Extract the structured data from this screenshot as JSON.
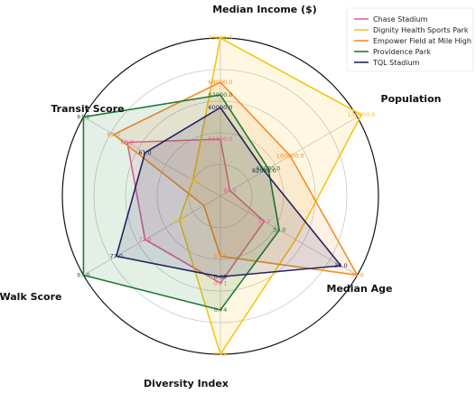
{
  "chart_data": {
    "type": "radar",
    "axes": [
      {
        "name": "Median Income ($)"
      },
      {
        "name": "Population"
      },
      {
        "name": "Median Age"
      },
      {
        "name": "Diversity Index"
      },
      {
        "name": "Walk Score"
      },
      {
        "name": "Transit Score"
      }
    ],
    "series": [
      {
        "name": "Chase Stadium",
        "color": "#e7609a",
        "values": [
          51000.0,
          null,
          33.0,
          0.71,
          72.0,
          66.0
        ],
        "labels": [
          "51000.0",
          "",
          "33.0",
          "0.71",
          "72.0",
          "66.0"
        ],
        "r": [
          0.36,
          0.07,
          0.32,
          0.55,
          0.55,
          0.68
        ]
      },
      {
        "name": "Dignity Health Sports Park",
        "color": "#f5c518",
        "values": [
          73000.0,
          150000.0,
          null,
          0.79,
          null,
          null
        ],
        "labels": [
          "73000.0",
          "150000.0",
          "",
          "0.79",
          "",
          ""
        ],
        "r": [
          1.0,
          1.03,
          0.55,
          1.0,
          0.3,
          0.2
        ]
      },
      {
        "name": "Empower Field at Mile High",
        "color": "#f28e2b",
        "values": [
          64000.0,
          100000.0,
          37.0,
          0.67,
          null,
          69.0
        ],
        "labels": [
          "64000.0",
          "100000.0",
          "37.0",
          "0.67",
          "",
          "69.0"
        ],
        "r": [
          0.72,
          0.51,
          1.0,
          0.38,
          0.12,
          0.78
        ]
      },
      {
        "name": "Providence Park",
        "color": "#1f7a34",
        "values": [
          62000.0,
          85000.0,
          34.0,
          0.74,
          87.0,
          81.0
        ],
        "labels": [
          "62000.0",
          "85000.0",
          "34.0",
          "0.74",
          "87.0",
          "81.0"
        ],
        "r": [
          0.64,
          0.35,
          0.43,
          0.72,
          1.0,
          1.0
        ]
      },
      {
        "name": "TQL Stadium",
        "color": "#24245e",
        "values": [
          60000.0,
          82000.0,
          36.0,
          0.69,
          77.0,
          61.0
        ],
        "labels": [
          "60000.0",
          "82000.0",
          "36.0",
          "0.69",
          "77.0",
          "61.0"
        ],
        "r": [
          0.56,
          0.32,
          0.88,
          0.51,
          0.76,
          0.55
        ]
      }
    ],
    "extra_labels": [
      {
        "text": "59.0",
        "series": 1,
        "axis": 5,
        "r": 0.2
      },
      {
        "text": "67.0",
        "series": 1,
        "axis": 4,
        "r": 0.3
      },
      {
        "text": "80.0",
        "series": 0,
        "axis": 1,
        "r": 0.07
      }
    ],
    "grid": true,
    "legend_position": "top-right"
  }
}
